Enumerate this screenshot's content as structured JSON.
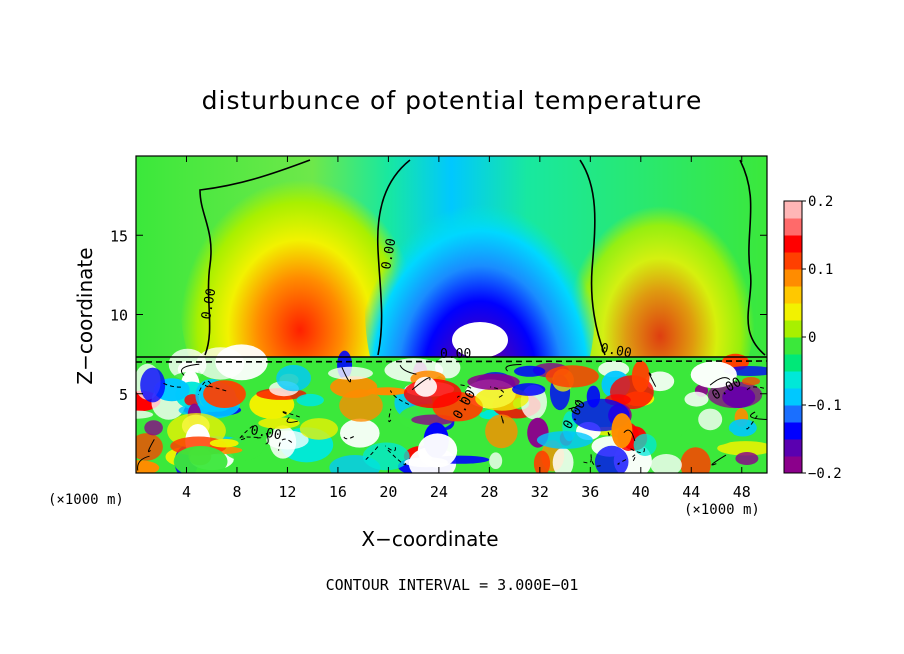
{
  "chart_data": {
    "type": "heatmap",
    "title": "disturbunce of potential temperature",
    "xlabel": "X−coordinate",
    "ylabel": "Z−coordinate",
    "x_unit": "(×1000 m)",
    "x_ticks": [
      4,
      8,
      12,
      16,
      20,
      24,
      28,
      32,
      36,
      40,
      44,
      48
    ],
    "y_ticks": [
      5,
      10,
      15
    ],
    "xlim": [
      0,
      50
    ],
    "ylim": [
      0,
      20
    ],
    "colorbar": {
      "ticks": [
        0.2,
        0.1,
        0,
        -0.1,
        -0.2
      ],
      "tick_labels": [
        "0.2",
        "0.1",
        "0",
        "−0.1",
        "−0.2"
      ],
      "range": [
        -0.2,
        0.2
      ],
      "colors": [
        "#8b008b",
        "#5a00b0",
        "#0000ff",
        "#1a6fff",
        "#00c8ff",
        "#00e8d8",
        "#00e878",
        "#3be83b",
        "#a8f000",
        "#f2f200",
        "#ffc800",
        "#ff8c00",
        "#ff4000",
        "#ff0000",
        "#ff6a6a",
        "#ffb6b6"
      ]
    },
    "contour_labels": [
      "0.00",
      "0.00",
      "0.00",
      "0.00",
      "0.00",
      "0.00",
      "0.00",
      "0.00"
    ],
    "contour_interval_text": "CONTOUR INTERVAL = 3.000E−01"
  }
}
